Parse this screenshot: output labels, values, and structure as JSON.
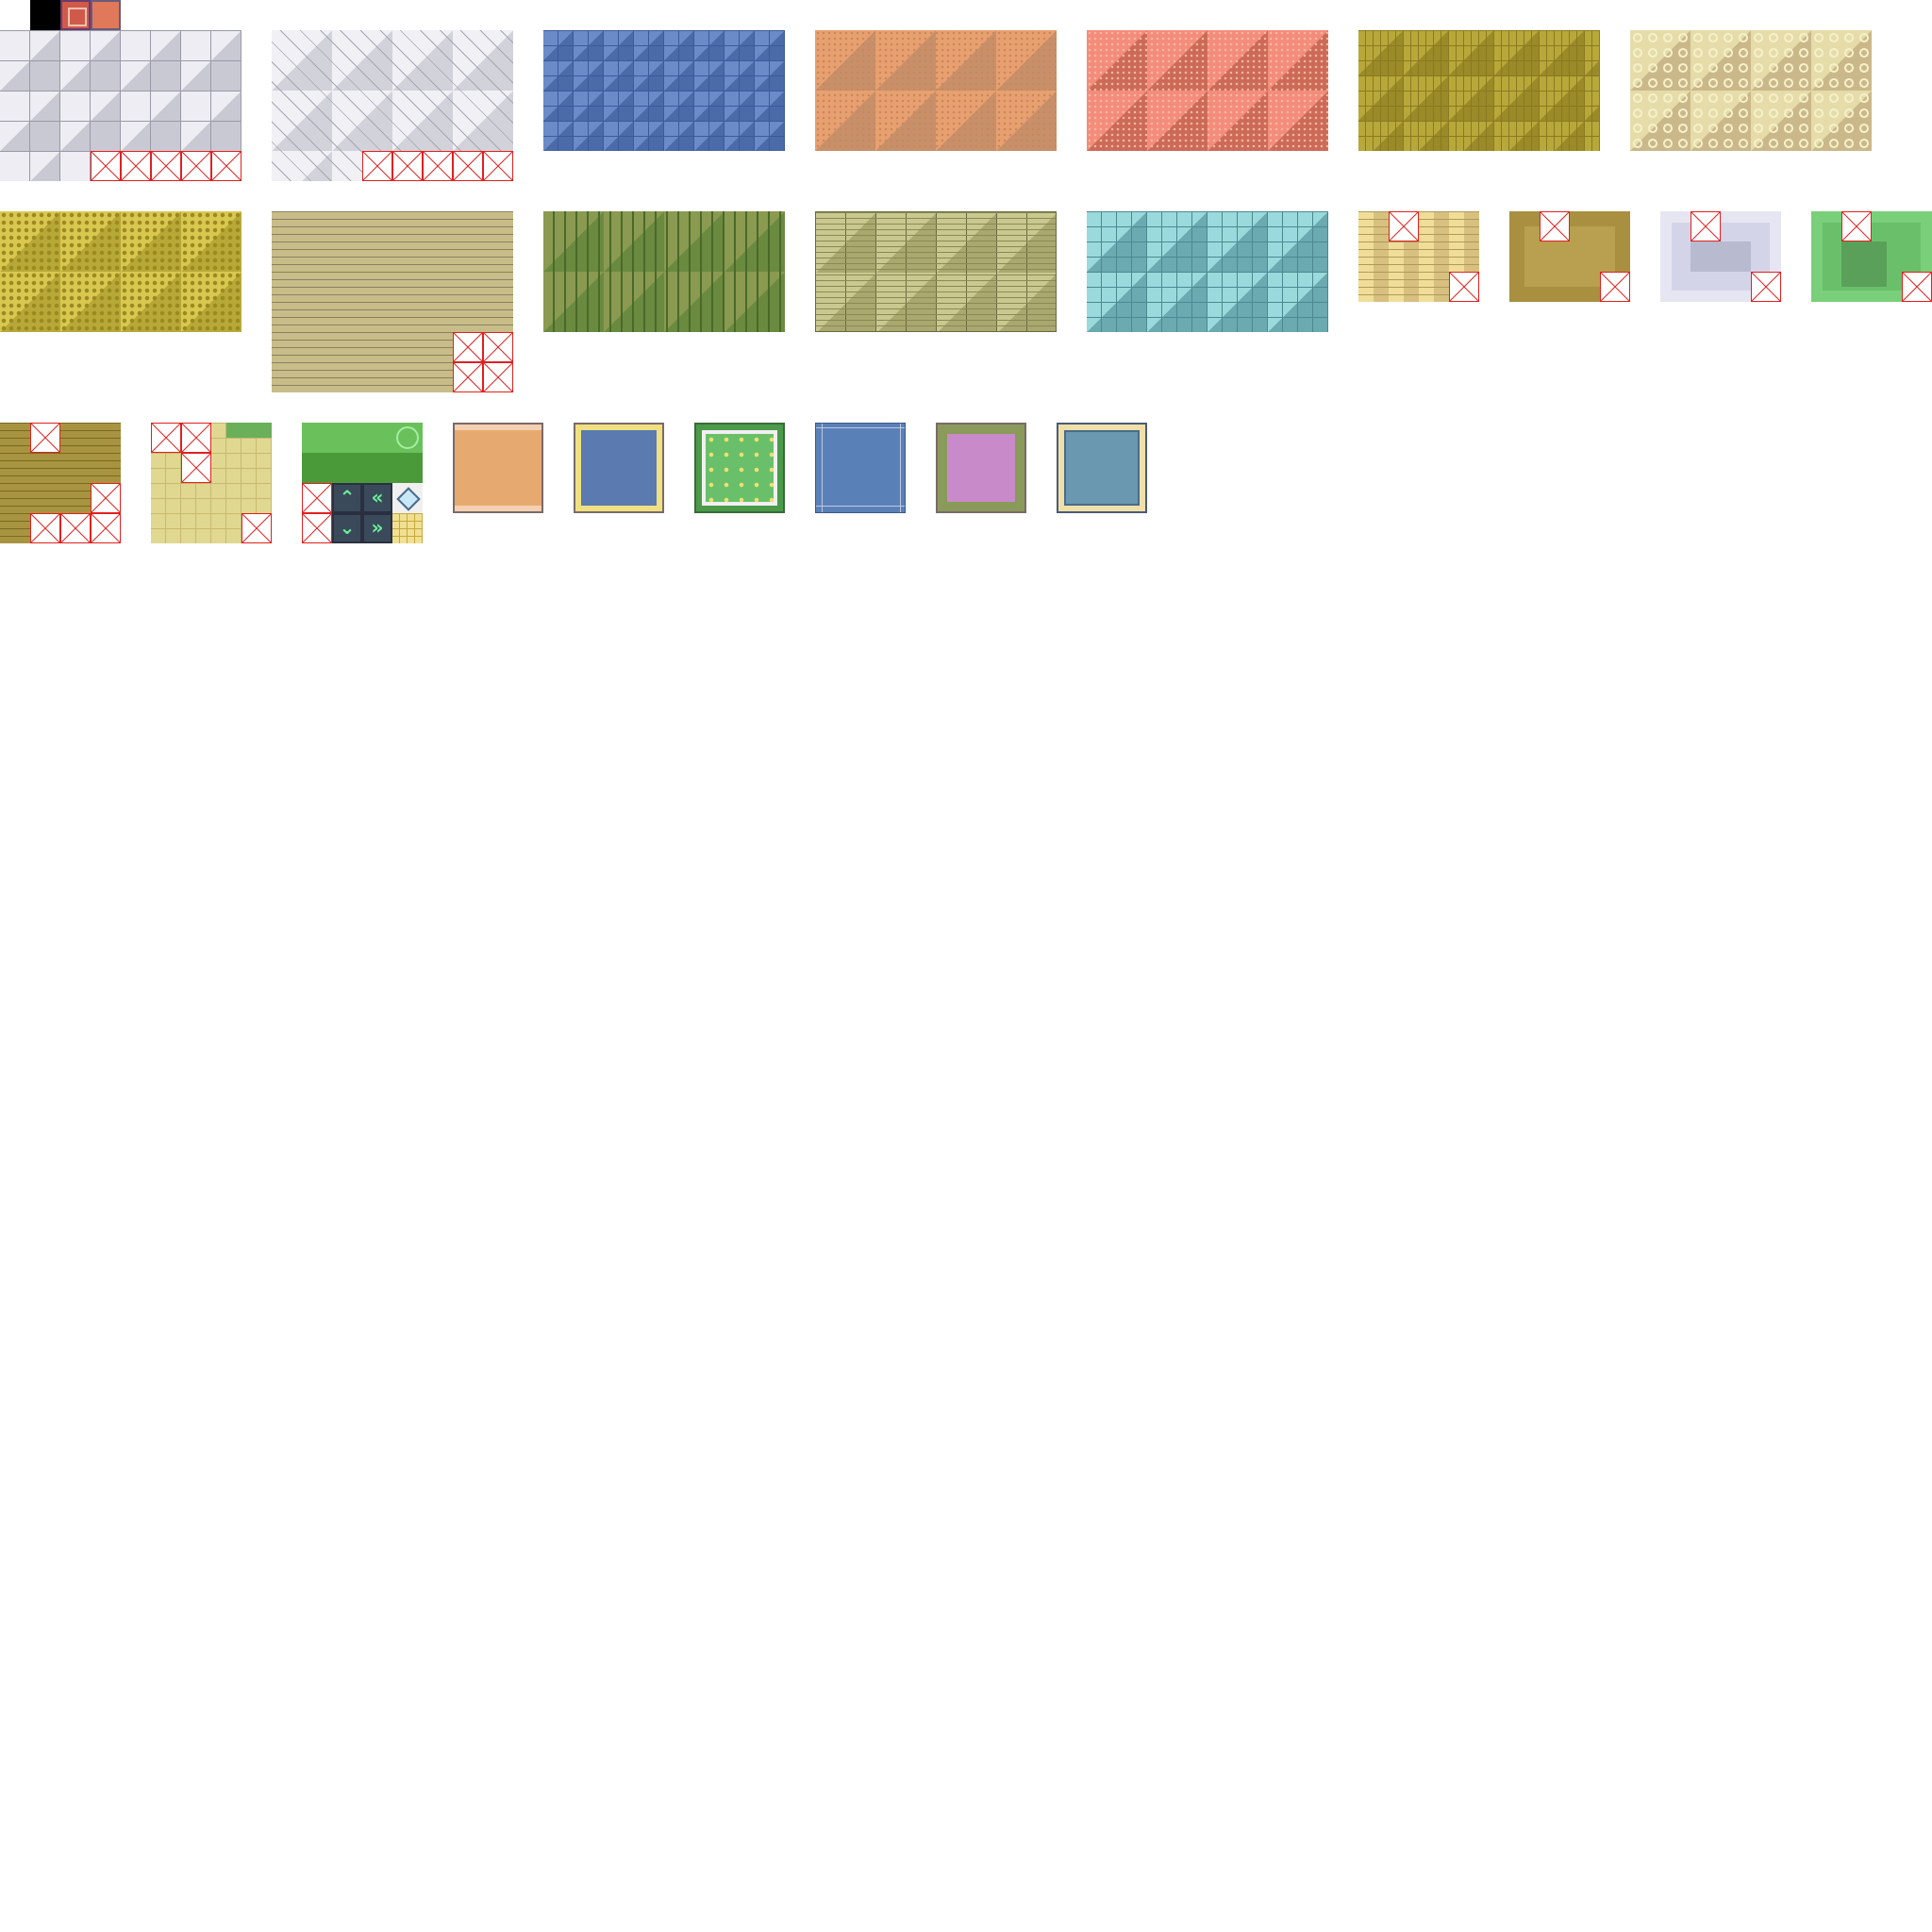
{
  "sheet": {
    "swatches": [
      {
        "name": "black",
        "color": "#000000"
      },
      {
        "name": "red-frame",
        "color": "#d05a4a"
      },
      {
        "name": "orange-carpet",
        "color": "#e0785a"
      }
    ],
    "floor_tilesets": [
      {
        "name": "gray-marble",
        "colors": [
          "#ededf3",
          "#c9c9d3"
        ]
      },
      {
        "name": "gray-diagonal",
        "colors": [
          "#f0f0f5",
          "#d2d2da"
        ]
      },
      {
        "name": "blue-tiles",
        "colors": [
          "#6a8ac8",
          "#4a6aa8"
        ]
      },
      {
        "name": "orange-carpet",
        "colors": [
          "#e8a070",
          "#c8906a"
        ]
      },
      {
        "name": "salmon-carpet",
        "colors": [
          "#f48c7c",
          "#cc6a58"
        ]
      },
      {
        "name": "olive-parquet",
        "colors": [
          "#b8a83a",
          "#9a8a28"
        ]
      },
      {
        "name": "cream-tiles",
        "colors": [
          "#e6dcaa",
          "#cbb88a"
        ]
      },
      {
        "name": "yellow-dotted",
        "colors": [
          "#d8c850",
          "#b8a838"
        ]
      },
      {
        "name": "tan-planks",
        "colors": [
          "#d0c598",
          "#b0a478"
        ]
      },
      {
        "name": "green-wood",
        "colors": [
          "#8a9a50",
          "#6a8a40"
        ]
      },
      {
        "name": "khaki-planks",
        "colors": [
          "#c8c890",
          "#a8a870"
        ]
      },
      {
        "name": "teal-tiles",
        "colors": [
          "#9adadc",
          "#6aaab0"
        ]
      }
    ],
    "small_tilesets": [
      {
        "name": "cream-planks"
      },
      {
        "name": "olive-floor"
      },
      {
        "name": "lavender-floor"
      },
      {
        "name": "grass-floor"
      },
      {
        "name": "brown-planks"
      },
      {
        "name": "yellow-grid"
      },
      {
        "name": "grass-arrows"
      }
    ],
    "arrow_tiles": [
      {
        "name": "arrow-up-icon",
        "glyph": "⌃"
      },
      {
        "name": "arrow-left-icon",
        "glyph": "«"
      },
      {
        "name": "arrow-down-icon",
        "glyph": "⌄"
      },
      {
        "name": "arrow-right-icon",
        "glyph": "»"
      }
    ],
    "mats": [
      {
        "name": "orange-mat",
        "color": "#e6aa70"
      },
      {
        "name": "blue-mat-yellow-border",
        "color": "#5a7ab0"
      },
      {
        "name": "green-dotted-mat",
        "color": "#6ac06a"
      },
      {
        "name": "blue-mat-lined",
        "color": "#5a80b8"
      },
      {
        "name": "pink-mat-olive-border",
        "color": "#c88ac8"
      },
      {
        "name": "steel-blue-mat",
        "color": "#6a98b0"
      }
    ],
    "missing_tile_icon": "missing-tile-icon",
    "missing_tile_color": "#e02020"
  }
}
